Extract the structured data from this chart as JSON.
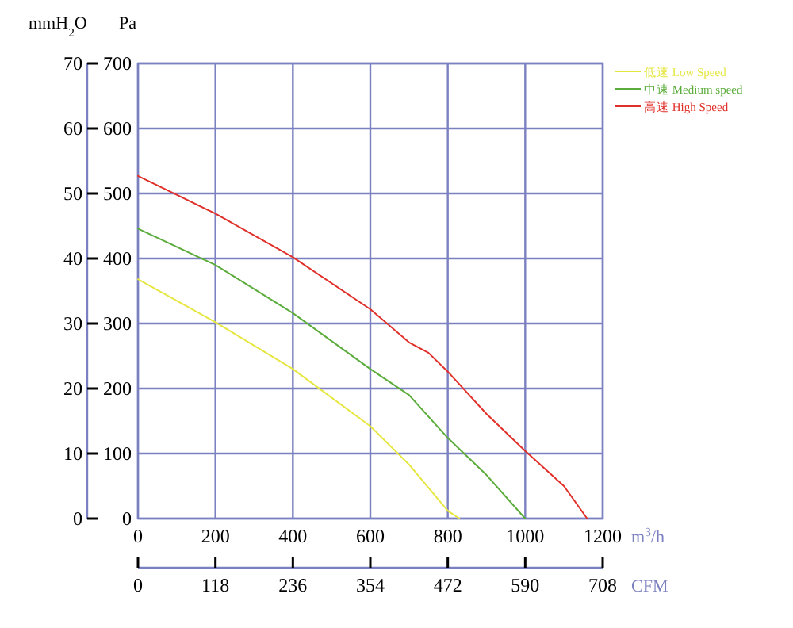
{
  "chart_data": {
    "type": "line",
    "xlabel": "m$^{3}$/h",
    "ylabel": "Pa",
    "y2label": "mmH$_{2}$O",
    "x2label": "CFM",
    "xlim": [
      0,
      1200
    ],
    "xticks": [
      0,
      200,
      400,
      600,
      800,
      1000,
      1200
    ],
    "ylim": [
      0,
      700
    ],
    "yticks": [
      0,
      100,
      200,
      300,
      400,
      500,
      600,
      700
    ],
    "y2lim": [
      0,
      70
    ],
    "y2ticks": [
      0,
      10,
      20,
      30,
      40,
      50,
      60,
      70
    ],
    "x2lim": [
      0,
      708
    ],
    "x2ticks": [
      0,
      118,
      236,
      354,
      472,
      590,
      708
    ],
    "grid": true,
    "legend": "top right",
    "series": [
      {
        "name": "低速 Low Speed",
        "color": "#e6e640",
        "x": [
          0,
          200,
          400,
          600,
          700,
          800,
          830
        ],
        "values": [
          368,
          302,
          230,
          142,
          83,
          12,
          0
        ]
      },
      {
        "name": "中速 Medium speed",
        "color": "#5cac3c",
        "x": [
          0,
          200,
          400,
          600,
          700,
          800,
          900,
          1000
        ],
        "values": [
          446,
          390,
          316,
          230,
          190,
          124,
          67,
          0
        ]
      },
      {
        "name": "高速 High Speed",
        "color": "#e0302a",
        "x": [
          0,
          200,
          400,
          600,
          700,
          750,
          800,
          900,
          1000,
          1100,
          1160
        ],
        "values": [
          527,
          469,
          402,
          322,
          271,
          255,
          226,
          161,
          104,
          50,
          0
        ]
      }
    ]
  }
}
